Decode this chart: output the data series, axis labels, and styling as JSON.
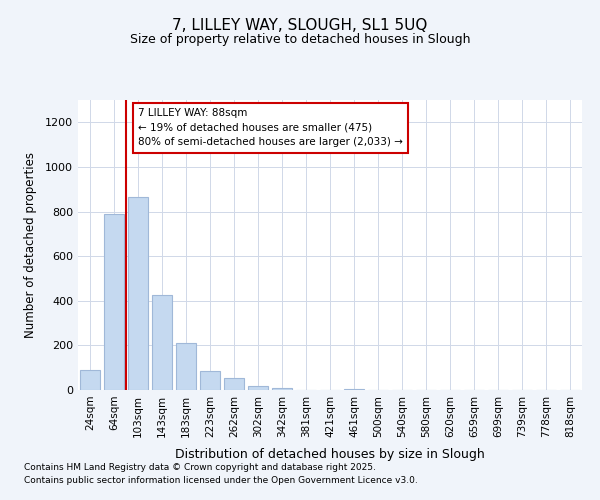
{
  "title": "7, LILLEY WAY, SLOUGH, SL1 5UQ",
  "subtitle": "Size of property relative to detached houses in Slough",
  "xlabel": "Distribution of detached houses by size in Slough",
  "ylabel": "Number of detached properties",
  "categories": [
    "24sqm",
    "64sqm",
    "103sqm",
    "143sqm",
    "183sqm",
    "223sqm",
    "262sqm",
    "302sqm",
    "342sqm",
    "381sqm",
    "421sqm",
    "461sqm",
    "500sqm",
    "540sqm",
    "580sqm",
    "620sqm",
    "659sqm",
    "699sqm",
    "739sqm",
    "778sqm",
    "818sqm"
  ],
  "values": [
    90,
    790,
    865,
    425,
    210,
    87,
    52,
    18,
    10,
    0,
    0,
    5,
    0,
    0,
    0,
    0,
    0,
    0,
    0,
    0,
    2
  ],
  "bar_color": "#c5d9f0",
  "bar_edge_color": "#a0b8d8",
  "vline_x": 1.5,
  "vline_color": "#cc0000",
  "box_text_lines": [
    "7 LILLEY WAY: 88sqm",
    "← 19% of detached houses are smaller (475)",
    "80% of semi-detached houses are larger (2,033) →"
  ],
  "box_edge_color": "#cc0000",
  "box_fill_color": "#ffffff",
  "ylim": [
    0,
    1300
  ],
  "yticks": [
    0,
    200,
    400,
    600,
    800,
    1000,
    1200
  ],
  "grid_color": "#d0d8e8",
  "plot_bg_color": "#ffffff",
  "fig_bg_color": "#f0f4fa",
  "footnote1": "Contains HM Land Registry data © Crown copyright and database right 2025.",
  "footnote2": "Contains public sector information licensed under the Open Government Licence v3.0."
}
